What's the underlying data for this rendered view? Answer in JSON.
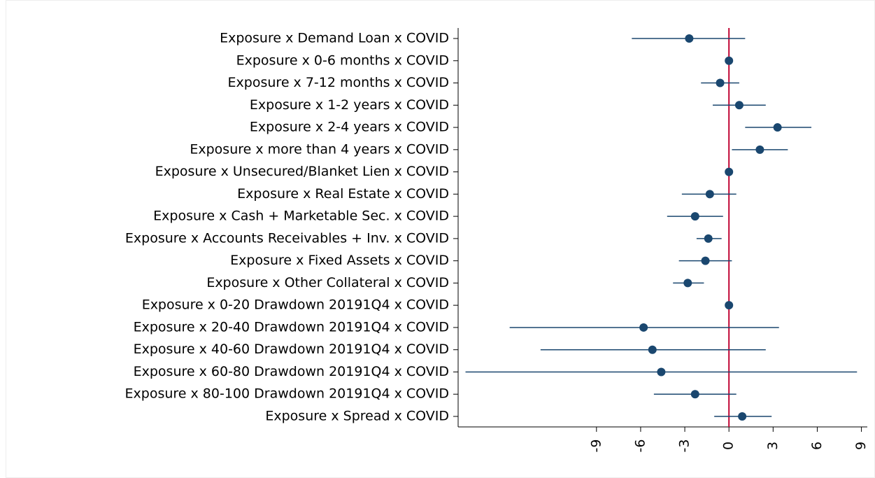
{
  "chart_data": {
    "type": "coefplot",
    "categories": [
      "Exposure x Demand Loan x COVID",
      "Exposure x 0-6 months x COVID",
      "Exposure x 7-12 months x COVID",
      "Exposure x 1-2 years x COVID",
      "Exposure x 2-4 years x COVID",
      "Exposure x more than 4 years x COVID",
      "Exposure x Unsecured/Blanket Lien x COVID",
      "Exposure x Real Estate x COVID",
      "Exposure x Cash + Marketable Sec. x COVID",
      "Exposure x Accounts Receivables + Inv. x COVID",
      "Exposure x Fixed Assets x COVID",
      "Exposure x Other Collateral x COVID",
      "Exposure x 0-20 Drawdown 20191Q4 x COVID",
      "Exposure x 20-40 Drawdown 20191Q4 x COVID",
      "Exposure x 40-60 Drawdown 20191Q4 x COVID",
      "Exposure x 60-80 Drawdown 20191Q4 x COVID",
      "Exposure x 80-100 Drawdown 20191Q4 x COVID",
      "Exposure x Spread x COVID"
    ],
    "values": [
      -2.7,
      0,
      -0.6,
      0.7,
      3.3,
      2.1,
      0,
      -1.3,
      -2.3,
      -1.4,
      -1.6,
      -2.8,
      0,
      -5.8,
      -5.2,
      -4.6,
      -2.3,
      0.9
    ],
    "ci_low": [
      -6.6,
      0,
      -1.9,
      -1.1,
      1.1,
      0.2,
      0,
      -3.2,
      -4.2,
      -2.2,
      -3.4,
      -3.8,
      0,
      -14.9,
      -12.8,
      -17.9,
      -5.1,
      -1.0
    ],
    "ci_high": [
      1.1,
      0,
      0.7,
      2.5,
      5.6,
      4.0,
      0,
      0.5,
      -0.4,
      -0.5,
      0.2,
      -1.7,
      0,
      3.4,
      2.5,
      8.7,
      0.5,
      2.9
    ],
    "color": "#1a476f",
    "reference_line": 0,
    "reference_color": "#c10534",
    "xlim": [
      -18.4,
      9.4
    ],
    "xticks": [
      -9,
      -6,
      -3,
      0,
      3,
      6,
      9
    ]
  }
}
